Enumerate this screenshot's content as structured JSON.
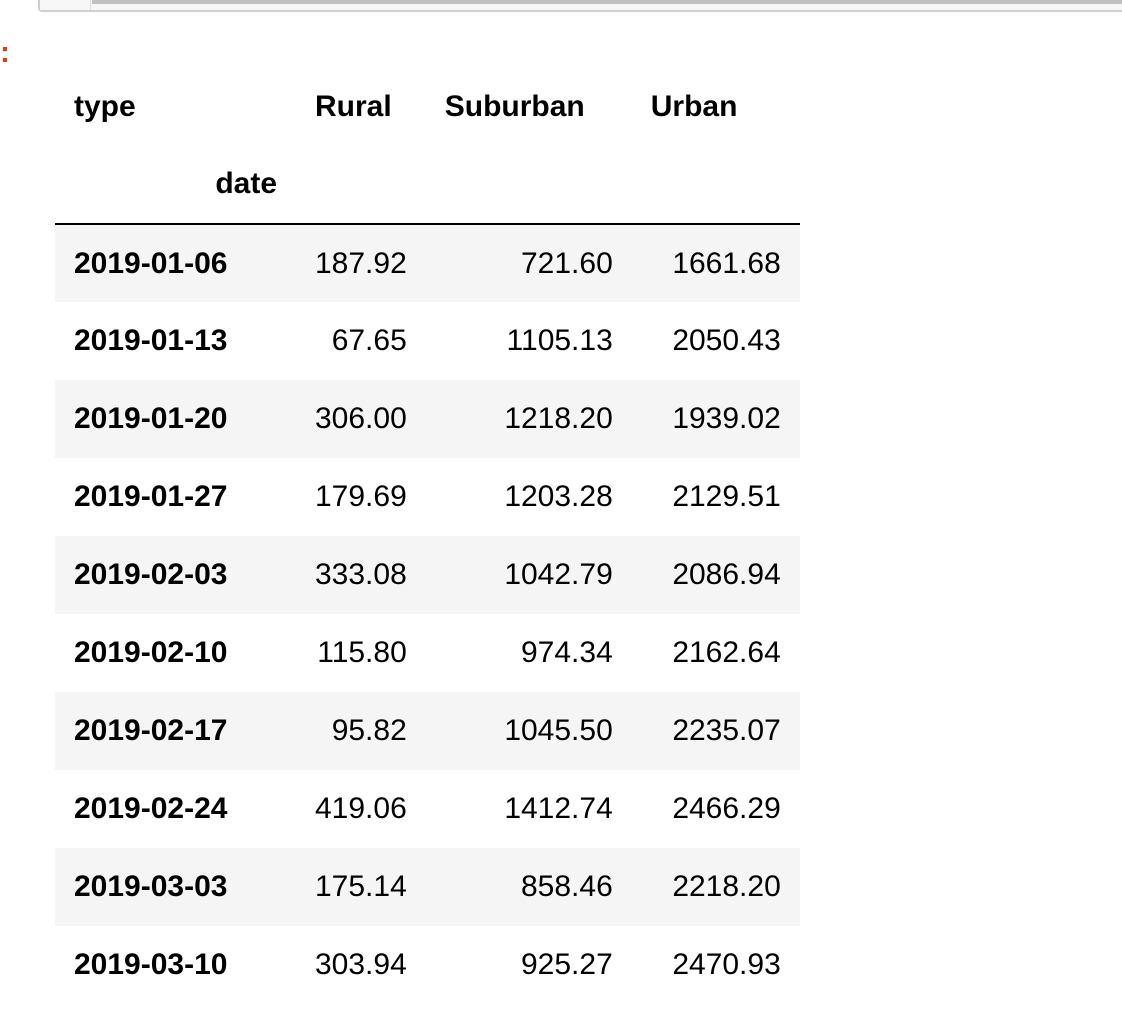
{
  "output": {
    "prompt": ":"
  },
  "dataframe": {
    "columns_name": "type",
    "index_name": "date",
    "columns": [
      "Rural",
      "Suburban",
      "Urban"
    ],
    "rows": [
      {
        "date": "2019-01-06",
        "values": [
          "187.92",
          "721.60",
          "1661.68"
        ]
      },
      {
        "date": "2019-01-13",
        "values": [
          "67.65",
          "1105.13",
          "2050.43"
        ]
      },
      {
        "date": "2019-01-20",
        "values": [
          "306.00",
          "1218.20",
          "1939.02"
        ]
      },
      {
        "date": "2019-01-27",
        "values": [
          "179.69",
          "1203.28",
          "2129.51"
        ]
      },
      {
        "date": "2019-02-03",
        "values": [
          "333.08",
          "1042.79",
          "2086.94"
        ]
      },
      {
        "date": "2019-02-10",
        "values": [
          "115.80",
          "974.34",
          "2162.64"
        ]
      },
      {
        "date": "2019-02-17",
        "values": [
          "95.82",
          "1045.50",
          "2235.07"
        ]
      },
      {
        "date": "2019-02-24",
        "values": [
          "419.06",
          "1412.74",
          "2466.29"
        ]
      },
      {
        "date": "2019-03-03",
        "values": [
          "175.14",
          "858.46",
          "2218.20"
        ]
      },
      {
        "date": "2019-03-10",
        "values": [
          "303.94",
          "925.27",
          "2470.93"
        ]
      }
    ]
  },
  "colors": {
    "prompt": "#d84315",
    "stripe": "#f5f5f5",
    "scrollbar": "#c1c1c1"
  }
}
